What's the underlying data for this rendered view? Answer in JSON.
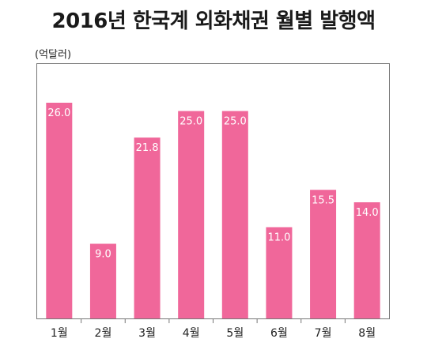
{
  "chart_data": {
    "type": "bar",
    "title": "2016년 한국계 외화채권 월별 발행액",
    "unit_label": "(억달러)",
    "categories": [
      "1월",
      "2월",
      "3월",
      "4월",
      "5월",
      "6월",
      "7월",
      "8월"
    ],
    "values": [
      26.0,
      9.0,
      21.8,
      25.0,
      25.0,
      11.0,
      15.5,
      14.0
    ],
    "value_labels": [
      "26.0",
      "9.0",
      "21.8",
      "25.0",
      "25.0",
      "11.0",
      "15.5",
      "14.0"
    ],
    "xlabel": "",
    "ylabel": "",
    "ylim": [
      0,
      32
    ],
    "grid": false,
    "legend": "none",
    "colors": {
      "bar": "#f0679a",
      "value_text": "#ffffff",
      "axis": "#777777"
    }
  }
}
